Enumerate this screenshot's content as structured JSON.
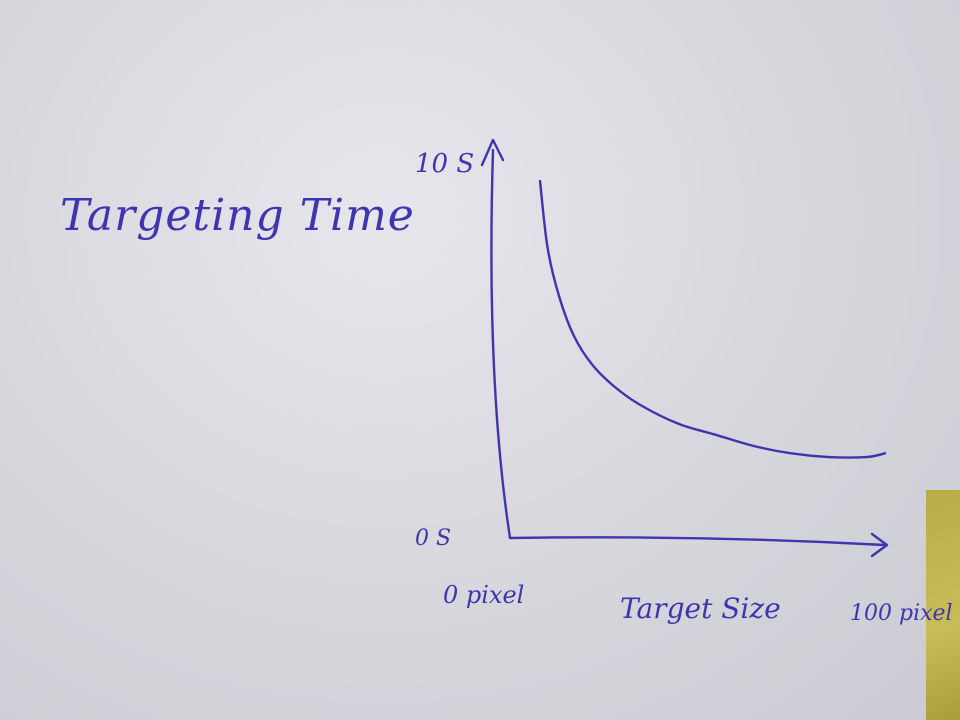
{
  "chart_data": {
    "type": "line",
    "title": "Targeting Time",
    "xlabel": "Target Size",
    "ylabel": "",
    "x_tick_labels": [
      "0 pixel",
      "100 pixel"
    ],
    "y_tick_labels": [
      "0 S",
      "10 S"
    ],
    "xlim": [
      0,
      100
    ],
    "ylim": [
      0,
      10
    ],
    "grid": false,
    "series": [
      {
        "x": [
          8,
          10,
          13,
          17,
          22,
          28,
          35,
          45,
          55,
          65,
          75,
          85,
          95,
          100
        ],
        "y": [
          9.7,
          7.9,
          6.6,
          5.5,
          4.7,
          4.1,
          3.6,
          3.1,
          2.8,
          2.5,
          2.3,
          2.2,
          2.2,
          2.3
        ]
      }
    ],
    "colors": {
      "ink": "#3f35b0"
    }
  }
}
